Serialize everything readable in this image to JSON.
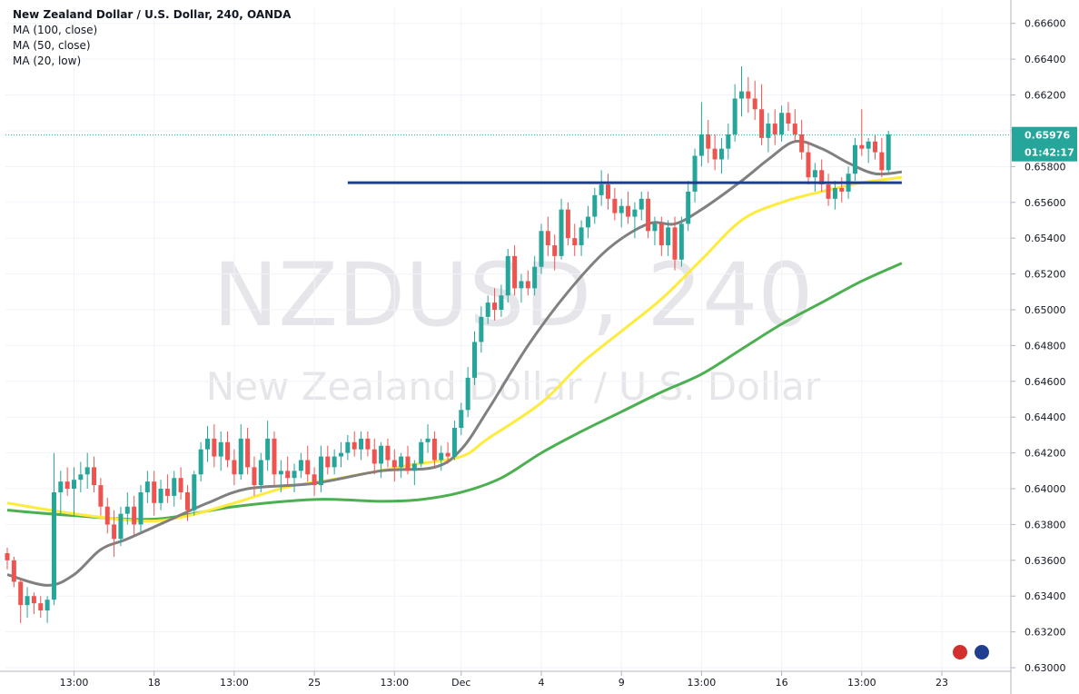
{
  "legend": {
    "title": "New Zealand Dollar / U.S. Dollar, 240, OANDA",
    "ma100": "MA (100, close)",
    "ma50": "MA (50, close)",
    "ma20": "MA (20, low)"
  },
  "watermark": {
    "symbol": "NZDUSD, 240",
    "name": "New Zealand Dollar / U.S. Dollar"
  },
  "price_badge": {
    "price": "0.65976",
    "countdown": "01:42:17"
  },
  "colors": {
    "up": "#26a69a",
    "down": "#ef5350",
    "ma100": "#4caf50",
    "ma50": "#ffeb3b",
    "ma20": "#808080",
    "support": "#1e3f8f",
    "badge": "#26a69a"
  },
  "chart_data": {
    "type": "candlestick",
    "symbol": "NZDUSD",
    "timeframe": "240",
    "source": "OANDA",
    "y_axis": {
      "range": [
        0.6298,
        0.6669
      ],
      "ticks": [
        "0.66600",
        "0.66400",
        "0.66200",
        "0.66000",
        "0.65800",
        "0.65600",
        "0.65400",
        "0.65200",
        "0.65000",
        "0.64800",
        "0.64600",
        "0.64400",
        "0.64200",
        "0.64000",
        "0.63800",
        "0.63600",
        "0.63400",
        "0.63200",
        "0.63000"
      ]
    },
    "x_axis": {
      "ticks": [
        {
          "label": "13:00",
          "index": 10
        },
        {
          "label": "18",
          "index": 22
        },
        {
          "label": "13:00",
          "index": 34
        },
        {
          "label": "25",
          "index": 46
        },
        {
          "label": "13:00",
          "index": 58
        },
        {
          "label": "Dec",
          "index": 68
        },
        {
          "label": "4",
          "index": 80
        },
        {
          "label": "9",
          "index": 92
        },
        {
          "label": "13:00",
          "index": 104
        },
        {
          "label": "16",
          "index": 116
        },
        {
          "label": "13:00",
          "index": 128
        },
        {
          "label": "23",
          "index": 140
        }
      ]
    },
    "ohlc": [
      [
        0.6364,
        0.6367,
        0.6355,
        0.636
      ],
      [
        0.636,
        0.6362,
        0.6345,
        0.6348
      ],
      [
        0.6348,
        0.635,
        0.6325,
        0.6335
      ],
      [
        0.6335,
        0.6345,
        0.6328,
        0.634
      ],
      [
        0.634,
        0.6342,
        0.633,
        0.6336
      ],
      [
        0.6336,
        0.634,
        0.6328,
        0.6332
      ],
      [
        0.6332,
        0.634,
        0.6325,
        0.6338
      ],
      [
        0.6338,
        0.642,
        0.6335,
        0.6398
      ],
      [
        0.6398,
        0.641,
        0.6385,
        0.6404
      ],
      [
        0.6404,
        0.6412,
        0.6396,
        0.64
      ],
      [
        0.64,
        0.6412,
        0.6385,
        0.6405
      ],
      [
        0.6405,
        0.6415,
        0.6398,
        0.6408
      ],
      [
        0.6408,
        0.642,
        0.64,
        0.6412
      ],
      [
        0.6412,
        0.6418,
        0.6398,
        0.6402
      ],
      [
        0.6402,
        0.6406,
        0.6385,
        0.639
      ],
      [
        0.639,
        0.6395,
        0.6375,
        0.638
      ],
      [
        0.638,
        0.6388,
        0.6362,
        0.6372
      ],
      [
        0.6372,
        0.639,
        0.6368,
        0.6386
      ],
      [
        0.6386,
        0.6398,
        0.638,
        0.639
      ],
      [
        0.639,
        0.6396,
        0.6374,
        0.638
      ],
      [
        0.638,
        0.6402,
        0.6376,
        0.6398
      ],
      [
        0.6398,
        0.641,
        0.6392,
        0.6404
      ],
      [
        0.6404,
        0.641,
        0.6385,
        0.6392
      ],
      [
        0.6392,
        0.6405,
        0.6388,
        0.64
      ],
      [
        0.64,
        0.6408,
        0.6392,
        0.6396
      ],
      [
        0.6396,
        0.641,
        0.639,
        0.6406
      ],
      [
        0.6406,
        0.6412,
        0.6394,
        0.6398
      ],
      [
        0.6398,
        0.6402,
        0.6382,
        0.6388
      ],
      [
        0.6388,
        0.641,
        0.6385,
        0.6408
      ],
      [
        0.6408,
        0.6426,
        0.6404,
        0.6422
      ],
      [
        0.6422,
        0.6435,
        0.6415,
        0.6428
      ],
      [
        0.6428,
        0.6436,
        0.6412,
        0.6418
      ],
      [
        0.6418,
        0.6432,
        0.641,
        0.6426
      ],
      [
        0.6426,
        0.6432,
        0.6412,
        0.6416
      ],
      [
        0.6416,
        0.6422,
        0.6402,
        0.6408
      ],
      [
        0.6408,
        0.6436,
        0.6405,
        0.6428
      ],
      [
        0.6428,
        0.6434,
        0.6408,
        0.6412
      ],
      [
        0.6412,
        0.6418,
        0.6396,
        0.6402
      ],
      [
        0.6402,
        0.642,
        0.6398,
        0.6416
      ],
      [
        0.6416,
        0.6438,
        0.641,
        0.6428
      ],
      [
        0.6428,
        0.6432,
        0.6402,
        0.6408
      ],
      [
        0.6408,
        0.6416,
        0.6398,
        0.641
      ],
      [
        0.641,
        0.6418,
        0.6402,
        0.6406
      ],
      [
        0.6406,
        0.6414,
        0.6398,
        0.641
      ],
      [
        0.641,
        0.642,
        0.6406,
        0.6416
      ],
      [
        0.6416,
        0.6424,
        0.6404,
        0.6408
      ],
      [
        0.6408,
        0.6412,
        0.6396,
        0.6402
      ],
      [
        0.6402,
        0.6424,
        0.6398,
        0.6418
      ],
      [
        0.6418,
        0.6424,
        0.6408,
        0.6412
      ],
      [
        0.6412,
        0.6422,
        0.6408,
        0.6418
      ],
      [
        0.6418,
        0.6426,
        0.6412,
        0.642
      ],
      [
        0.642,
        0.643,
        0.6416,
        0.6426
      ],
      [
        0.6426,
        0.6432,
        0.6418,
        0.6422
      ],
      [
        0.6422,
        0.6432,
        0.6416,
        0.6428
      ],
      [
        0.6428,
        0.6432,
        0.6418,
        0.6422
      ],
      [
        0.6422,
        0.6428,
        0.6408,
        0.6414
      ],
      [
        0.6414,
        0.6426,
        0.6406,
        0.6424
      ],
      [
        0.6424,
        0.6428,
        0.6412,
        0.6416
      ],
      [
        0.6416,
        0.6422,
        0.6404,
        0.6412
      ],
      [
        0.6412,
        0.642,
        0.6406,
        0.6418
      ],
      [
        0.6418,
        0.6424,
        0.6408,
        0.641
      ],
      [
        0.641,
        0.6416,
        0.6402,
        0.6414
      ],
      [
        0.6414,
        0.6428,
        0.6412,
        0.6426
      ],
      [
        0.6426,
        0.6436,
        0.642,
        0.6428
      ],
      [
        0.6428,
        0.6432,
        0.6412,
        0.6416
      ],
      [
        0.6416,
        0.6424,
        0.641,
        0.642
      ],
      [
        0.642,
        0.6426,
        0.6414,
        0.6418
      ],
      [
        0.6418,
        0.6438,
        0.6416,
        0.6434
      ],
      [
        0.6434,
        0.6448,
        0.643,
        0.6444
      ],
      [
        0.6444,
        0.6468,
        0.644,
        0.6462
      ],
      [
        0.6462,
        0.6488,
        0.6458,
        0.6482
      ],
      [
        0.6482,
        0.6502,
        0.6476,
        0.6496
      ],
      [
        0.6496,
        0.6508,
        0.6492,
        0.6504
      ],
      [
        0.6504,
        0.6512,
        0.6494,
        0.65
      ],
      [
        0.65,
        0.6514,
        0.6496,
        0.6508
      ],
      [
        0.6508,
        0.6534,
        0.6504,
        0.653
      ],
      [
        0.653,
        0.6536,
        0.6508,
        0.6512
      ],
      [
        0.6512,
        0.652,
        0.6504,
        0.6516
      ],
      [
        0.6516,
        0.6522,
        0.6508,
        0.6512
      ],
      [
        0.6512,
        0.653,
        0.6508,
        0.6524
      ],
      [
        0.6524,
        0.6548,
        0.652,
        0.6544
      ],
      [
        0.6544,
        0.6552,
        0.653,
        0.6536
      ],
      [
        0.6536,
        0.6542,
        0.6522,
        0.653
      ],
      [
        0.653,
        0.6562,
        0.6528,
        0.6556
      ],
      [
        0.6556,
        0.656,
        0.6536,
        0.654
      ],
      [
        0.654,
        0.6548,
        0.653,
        0.6536
      ],
      [
        0.6536,
        0.655,
        0.653,
        0.6546
      ],
      [
        0.6546,
        0.6558,
        0.654,
        0.6552
      ],
      [
        0.6552,
        0.6568,
        0.6548,
        0.6564
      ],
      [
        0.6564,
        0.6578,
        0.6558,
        0.657
      ],
      [
        0.657,
        0.6576,
        0.6556,
        0.6562
      ],
      [
        0.6562,
        0.6568,
        0.655,
        0.6554
      ],
      [
        0.6554,
        0.6562,
        0.6546,
        0.6558
      ],
      [
        0.6558,
        0.6566,
        0.6548,
        0.6552
      ],
      [
        0.6552,
        0.656,
        0.654,
        0.6556
      ],
      [
        0.6556,
        0.6566,
        0.655,
        0.6562
      ],
      [
        0.6562,
        0.6566,
        0.654,
        0.6544
      ],
      [
        0.6544,
        0.6552,
        0.6536,
        0.6548
      ],
      [
        0.6548,
        0.6552,
        0.653,
        0.6536
      ],
      [
        0.6536,
        0.655,
        0.653,
        0.6546
      ],
      [
        0.6546,
        0.6552,
        0.6522,
        0.6528
      ],
      [
        0.6528,
        0.6552,
        0.6524,
        0.6548
      ],
      [
        0.6548,
        0.6572,
        0.6544,
        0.6566
      ],
      [
        0.6566,
        0.659,
        0.656,
        0.6586
      ],
      [
        0.6586,
        0.6616,
        0.658,
        0.6598
      ],
      [
        0.6598,
        0.6606,
        0.6582,
        0.659
      ],
      [
        0.659,
        0.6598,
        0.6578,
        0.6584
      ],
      [
        0.6584,
        0.6596,
        0.6576,
        0.659
      ],
      [
        0.659,
        0.6604,
        0.6584,
        0.6598
      ],
      [
        0.6598,
        0.6626,
        0.6594,
        0.6618
      ],
      [
        0.6618,
        0.6636,
        0.6608,
        0.6622
      ],
      [
        0.6622,
        0.663,
        0.661,
        0.6618
      ],
      [
        0.6618,
        0.6628,
        0.6606,
        0.6612
      ],
      [
        0.6612,
        0.6626,
        0.6592,
        0.6596
      ],
      [
        0.6596,
        0.661,
        0.6588,
        0.6604
      ],
      [
        0.6604,
        0.6612,
        0.6592,
        0.6598
      ],
      [
        0.6598,
        0.6614,
        0.6594,
        0.661
      ],
      [
        0.661,
        0.6616,
        0.66,
        0.6604
      ],
      [
        0.6604,
        0.6612,
        0.6594,
        0.6598
      ],
      [
        0.6598,
        0.6606,
        0.6584,
        0.6588
      ],
      [
        0.6588,
        0.6594,
        0.657,
        0.6574
      ],
      [
        0.6574,
        0.6582,
        0.6566,
        0.6578
      ],
      [
        0.6578,
        0.6584,
        0.6566,
        0.657
      ],
      [
        0.657,
        0.6576,
        0.6558,
        0.6562
      ],
      [
        0.6562,
        0.6572,
        0.6556,
        0.6568
      ],
      [
        0.6568,
        0.6574,
        0.656,
        0.6566
      ],
      [
        0.6566,
        0.658,
        0.6562,
        0.6576
      ],
      [
        0.6576,
        0.6596,
        0.6572,
        0.6592
      ],
      [
        0.6592,
        0.6612,
        0.6586,
        0.659
      ],
      [
        0.659,
        0.6596,
        0.6582,
        0.6594
      ],
      [
        0.6594,
        0.6598,
        0.6584,
        0.6588
      ],
      [
        0.6588,
        0.6596,
        0.6574,
        0.6578
      ],
      [
        0.6578,
        0.66,
        0.6576,
        0.6598
      ]
    ],
    "ma_lines": [
      {
        "name": "MA (100, close)",
        "color": "#4caf50",
        "y": [
          [
            0,
            0.6388
          ],
          [
            10,
            0.6385
          ],
          [
            22,
            0.6383
          ],
          [
            34,
            0.639
          ],
          [
            46,
            0.6394
          ],
          [
            56,
            0.6393
          ],
          [
            62,
            0.6394
          ],
          [
            68,
            0.6398
          ],
          [
            74,
            0.6406
          ],
          [
            80,
            0.642
          ],
          [
            86,
            0.6432
          ],
          [
            92,
            0.6443
          ],
          [
            98,
            0.6454
          ],
          [
            104,
            0.6464
          ],
          [
            110,
            0.6478
          ],
          [
            116,
            0.6492
          ],
          [
            122,
            0.6504
          ],
          [
            128,
            0.6516
          ],
          [
            134,
            0.6526
          ]
        ]
      },
      {
        "name": "MA (50, close)",
        "color": "#ffeb3b",
        "y": [
          [
            0,
            0.6392
          ],
          [
            10,
            0.6386
          ],
          [
            20,
            0.6382
          ],
          [
            26,
            0.6384
          ],
          [
            34,
            0.6392
          ],
          [
            42,
            0.6401
          ],
          [
            50,
            0.6406
          ],
          [
            60,
            0.6413
          ],
          [
            68,
            0.6418
          ],
          [
            72,
            0.6428
          ],
          [
            80,
            0.6448
          ],
          [
            86,
            0.647
          ],
          [
            92,
            0.6488
          ],
          [
            98,
            0.6506
          ],
          [
            104,
            0.6528
          ],
          [
            110,
            0.655
          ],
          [
            116,
            0.656
          ],
          [
            122,
            0.6566
          ],
          [
            128,
            0.6571
          ],
          [
            134,
            0.6574
          ]
        ]
      },
      {
        "name": "MA (20, low)",
        "color": "#808080",
        "y": [
          [
            0,
            0.6352
          ],
          [
            6,
            0.6346
          ],
          [
            10,
            0.6352
          ],
          [
            14,
            0.6366
          ],
          [
            18,
            0.6372
          ],
          [
            24,
            0.6382
          ],
          [
            30,
            0.6392
          ],
          [
            36,
            0.64
          ],
          [
            46,
            0.6403
          ],
          [
            56,
            0.641
          ],
          [
            64,
            0.6412
          ],
          [
            68,
            0.6422
          ],
          [
            72,
            0.6444
          ],
          [
            78,
            0.648
          ],
          [
            84,
            0.651
          ],
          [
            90,
            0.6534
          ],
          [
            96,
            0.6548
          ],
          [
            100,
            0.6548
          ],
          [
            104,
            0.6556
          ],
          [
            110,
            0.6572
          ],
          [
            114,
            0.6584
          ],
          [
            118,
            0.6594
          ],
          [
            122,
            0.659
          ],
          [
            126,
            0.6582
          ],
          [
            130,
            0.6576
          ],
          [
            134,
            0.6577
          ]
        ]
      }
    ],
    "support_line": {
      "value": 0.6571,
      "from_index": 51,
      "to_index": 134
    },
    "last_price": 0.65976
  }
}
